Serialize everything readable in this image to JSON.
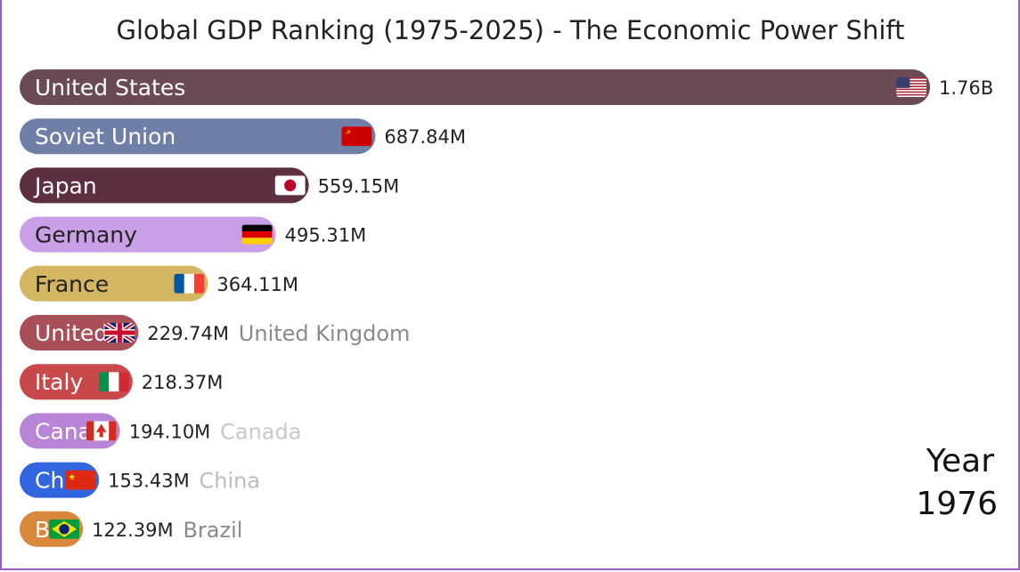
{
  "chart_data": {
    "type": "bar",
    "title": "Global GDP Ranking (1975-2025) - The Economic Power Shift",
    "year_label": "Year",
    "year": "1976",
    "categories": [
      "United States",
      "Soviet Union",
      "Japan",
      "Germany",
      "France",
      "United Kingdom",
      "Italy",
      "Canada",
      "China",
      "Brazil"
    ],
    "values": [
      1760,
      687.84,
      559.15,
      495.31,
      364.11,
      229.74,
      218.37,
      194.1,
      153.43,
      122.39
    ],
    "value_labels": [
      "1.76B",
      "687.84M",
      "559.15M",
      "495.31M",
      "364.11M",
      "229.74M",
      "218.37M",
      "194.10M",
      "153.43M",
      "122.39M"
    ],
    "inside_labels": [
      "United States",
      "Soviet Union",
      "Japan",
      "Germany",
      "France",
      "United",
      "Italy",
      "Cana",
      "Chi",
      "B"
    ],
    "outside_labels": [
      "",
      "",
      "",
      "",
      "",
      "United Kingdom",
      "",
      "Canada",
      "China",
      "Brazil"
    ],
    "outside_label_colors": [
      "",
      "",
      "",
      "",
      "",
      "#8a8a8a",
      "",
      "#c8c8c8",
      "#bdbdbd",
      "#8a8a8a"
    ],
    "colors": [
      "#6a4b53",
      "#6f7fa8",
      "#5e2f40",
      "#c9a0e8",
      "#d4b662",
      "#a84f5a",
      "#c9494b",
      "#b884d6",
      "#3266e0",
      "#d9883b"
    ],
    "inside_text_colors": [
      "#ffffff",
      "#ffffff",
      "#ffffff",
      "#222222",
      "#222222",
      "#ffffff",
      "#ffffff",
      "#ffffff",
      "#ffffff",
      "#ffffff"
    ],
    "flags": [
      "us-flag",
      "ussr-flag",
      "japan-flag",
      "germany-flag",
      "france-flag",
      "uk-flag",
      "italy-flag",
      "canada-flag",
      "china-flag",
      "brazil-flag"
    ]
  }
}
